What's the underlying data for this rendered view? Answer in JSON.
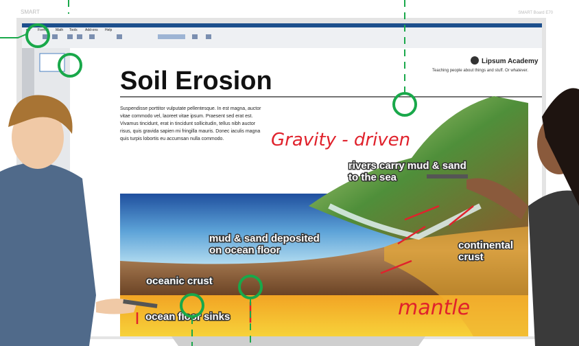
{
  "board": {
    "brand": "SMART",
    "model": "SMART Board E70"
  },
  "menu": [
    "ert",
    "Format",
    "Math",
    "Tools",
    "Add-ons",
    "Help"
  ],
  "slide": {
    "title": "Soil Erosion",
    "logo": "Lipsum Academy",
    "tagline": "Teaching people about things and stuff. Or whatever.",
    "body": [
      "Suspendisse porttitor vulputate pellentesque. In est magna, auctor",
      "vitae commodo vel, laoreet vitae ipsum. Praesent sed erat est.",
      "Vivamus tincidunt, erat in tincidunt sollicitudin, tellus nibh auctor",
      "risus, quis gravida sapien mi fringilla mauris. Donec iaculis magna",
      "quis turpis lobortis eu accumsan nulla commodo."
    ],
    "handwriting": [
      "Gravity - driven",
      "mantle"
    ],
    "labels": [
      [
        "rivers carry mud & sand",
        "to the sea"
      ],
      [
        "mud & sand deposited",
        "on ocean floor"
      ],
      [
        "continental",
        "crust"
      ],
      [
        "oceanic crust"
      ],
      [
        "ocean floor sinks"
      ]
    ]
  }
}
